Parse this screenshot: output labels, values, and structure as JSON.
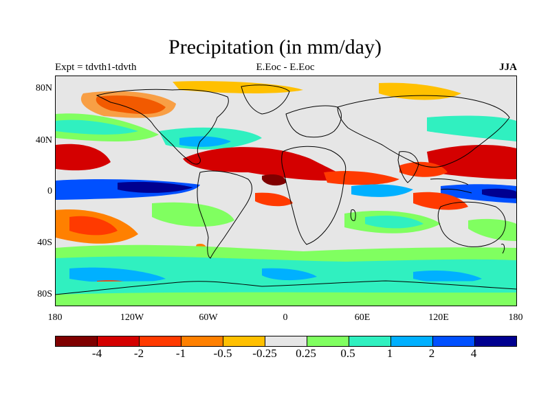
{
  "title": "Precipitation (in mm/day)",
  "subtitle_left": "Expt = tdvth1-tdvth",
  "subtitle_center": "E.Eoc - E.Eoc",
  "subtitle_right": "JJA",
  "y_ticks": [
    "80N",
    "40N",
    "0",
    "40S",
    "80S"
  ],
  "x_ticks": [
    "180",
    "120W",
    "60W",
    "0",
    "60E",
    "120E",
    "180"
  ],
  "colorbar": {
    "colors": [
      "#7f0000",
      "#d40000",
      "#ff3a00",
      "#ff8000",
      "#ffc000",
      "#e6e6e6",
      "#80ff60",
      "#30f0c0",
      "#00b0ff",
      "#0050ff",
      "#000090"
    ],
    "labels": [
      "-4",
      "-2",
      "-1",
      "-0.5",
      "-0.25",
      "0.25",
      "0.5",
      "1",
      "2",
      "4"
    ]
  },
  "map": {
    "projection": "cylindrical-equidistant",
    "lon_range": [
      -180,
      180
    ],
    "lat_range": [
      -90,
      90
    ],
    "background_color": "#e6e6e6",
    "coastline_color": "#000000"
  }
}
